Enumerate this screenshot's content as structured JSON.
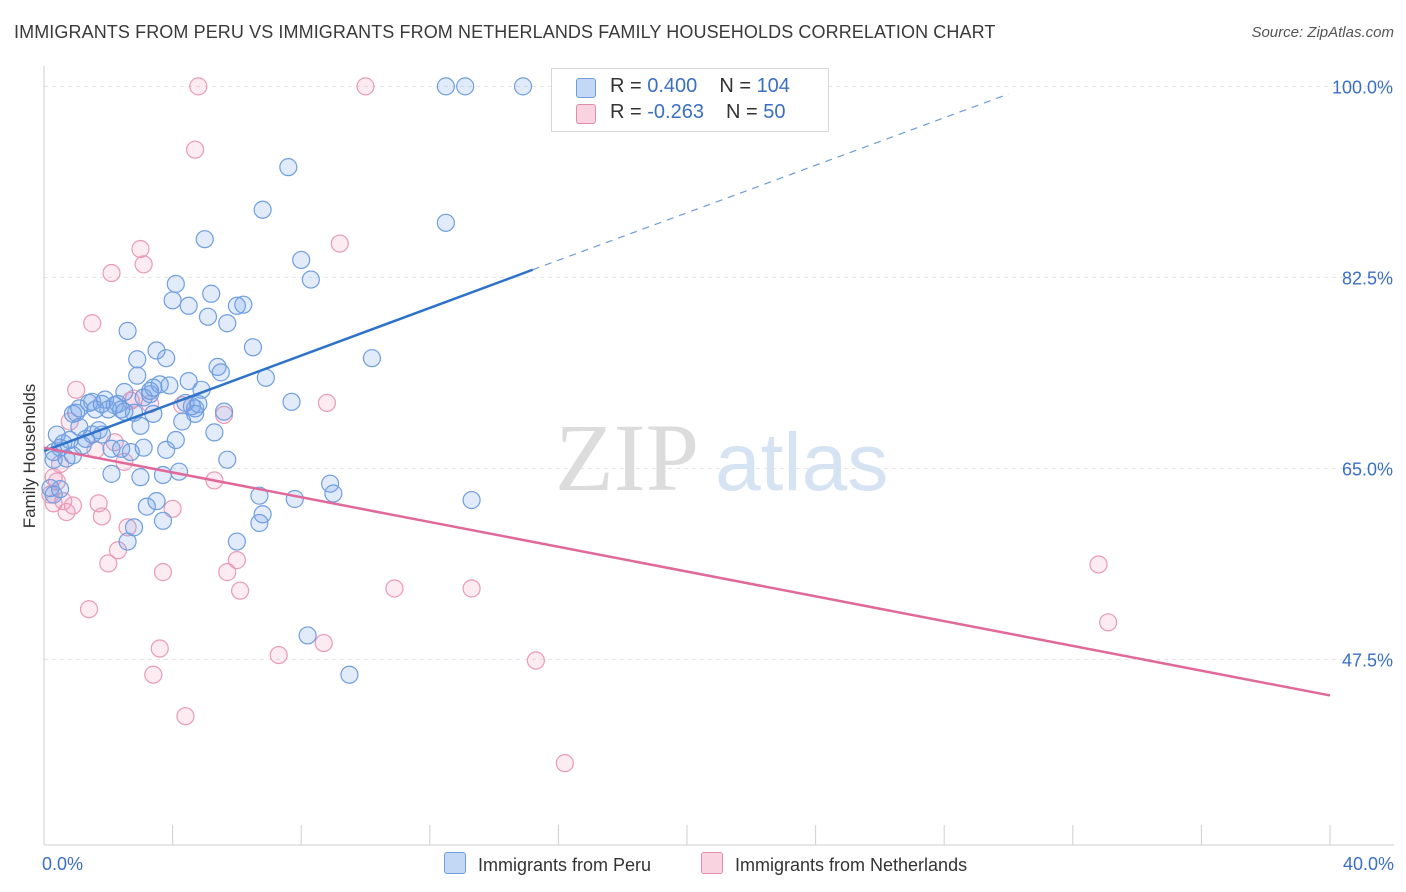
{
  "title": "IMMIGRANTS FROM PERU VS IMMIGRANTS FROM NETHERLANDS FAMILY HOUSEHOLDS CORRELATION CHART",
  "source": "Source: ZipAtlas.com",
  "watermark": {
    "zip": "ZIP",
    "atlas": "atlas"
  },
  "legend": {
    "rows": [
      {
        "r_label": "R = ",
        "r_value": "0.400",
        "n_label": "N = ",
        "n_value": "104",
        "color": "#aac8f0",
        "border": "#6f9ee0"
      },
      {
        "r_label": "R = ",
        "r_value": "-0.263",
        "n_label": "N = ",
        "n_value": "50",
        "color": "#f6c0d2",
        "border": "#e58aab"
      }
    ]
  },
  "bottom_legend": {
    "peru": "Immigrants from Peru",
    "netherlands": "Immigrants from Netherlands"
  },
  "colors": {
    "peru_fill": "rgba(120,165,230,0.22)",
    "peru_stroke": "#6f9ee0",
    "peru_line": "#2f72c9",
    "neth_fill": "rgba(240,150,185,0.18)",
    "neth_stroke": "#e99ab6",
    "neth_line": "#e0699a",
    "tick_label": "#3b6fc4",
    "grid": "#e2e2e2"
  },
  "chart_data": {
    "type": "scatter",
    "title": "IMMIGRANTS FROM PERU VS IMMIGRANTS FROM NETHERLANDS FAMILY HOUSEHOLDS CORRELATION CHART",
    "xlabel": "",
    "ylabel": "Family Households",
    "xlim": [
      0,
      40
    ],
    "ylim": [
      30.5,
      101.5
    ],
    "x_tick_labels": [
      "0.0%",
      "40.0%"
    ],
    "y_ticks": [
      47.5,
      65.0,
      82.5,
      100.0
    ],
    "y_tick_labels": [
      "47.5%",
      "65.0%",
      "82.5%",
      "100.0%"
    ],
    "grid": true,
    "legend_position": "top-center",
    "series": [
      {
        "name": "Immigrants from Peru",
        "r": 0.4,
        "n": 104,
        "trend": {
          "x": [
            0,
            15.2
          ],
          "y": [
            66.6,
            83.2
          ],
          "dashed_to": [
            30.0,
            99.3
          ]
        },
        "points": [
          [
            0.2,
            63.2
          ],
          [
            0.3,
            62.6
          ],
          [
            0.3,
            66.5
          ],
          [
            0.4,
            68.1
          ],
          [
            0.5,
            66.9
          ],
          [
            0.5,
            63.1
          ],
          [
            0.6,
            67.3
          ],
          [
            0.7,
            65.9
          ],
          [
            0.8,
            67.6
          ],
          [
            0.9,
            66.2
          ],
          [
            0.9,
            70.0
          ],
          [
            1.0,
            70.1
          ],
          [
            1.1,
            68.8
          ],
          [
            1.2,
            67.1
          ],
          [
            1.3,
            67.7
          ],
          [
            1.4,
            71.0
          ],
          [
            1.5,
            68.1
          ],
          [
            1.5,
            71.1
          ],
          [
            1.6,
            70.4
          ],
          [
            1.7,
            68.5
          ],
          [
            1.8,
            70.9
          ],
          [
            1.8,
            68.1
          ],
          [
            1.9,
            71.3
          ],
          [
            2.0,
            70.4
          ],
          [
            2.1,
            66.8
          ],
          [
            2.1,
            64.5
          ],
          [
            2.2,
            70.8
          ],
          [
            2.3,
            70.9
          ],
          [
            2.4,
            66.8
          ],
          [
            2.4,
            70.4
          ],
          [
            2.5,
            70.2
          ],
          [
            2.5,
            72.0
          ],
          [
            2.6,
            58.3
          ],
          [
            2.6,
            77.6
          ],
          [
            2.7,
            66.5
          ],
          [
            2.8,
            59.6
          ],
          [
            2.8,
            70.1
          ],
          [
            2.9,
            73.5
          ],
          [
            2.9,
            75.0
          ],
          [
            3.0,
            68.9
          ],
          [
            3.0,
            64.2
          ],
          [
            3.1,
            66.9
          ],
          [
            3.1,
            71.5
          ],
          [
            3.2,
            61.5
          ],
          [
            3.3,
            71.8
          ],
          [
            3.4,
            72.4
          ],
          [
            3.4,
            70.0
          ],
          [
            3.5,
            62.0
          ],
          [
            3.5,
            75.8
          ],
          [
            3.6,
            72.7
          ],
          [
            3.7,
            64.4
          ],
          [
            3.7,
            60.2
          ],
          [
            3.8,
            66.7
          ],
          [
            3.8,
            75.1
          ],
          [
            3.9,
            72.6
          ],
          [
            4.0,
            80.4
          ],
          [
            4.1,
            67.6
          ],
          [
            4.1,
            81.9
          ],
          [
            4.2,
            64.7
          ],
          [
            4.3,
            69.3
          ],
          [
            4.4,
            71.0
          ],
          [
            4.5,
            73.0
          ],
          [
            4.5,
            79.9
          ],
          [
            4.6,
            70.7
          ],
          [
            4.7,
            70.5
          ],
          [
            4.8,
            70.9
          ],
          [
            4.9,
            72.2
          ],
          [
            5.0,
            86.0
          ],
          [
            5.1,
            78.9
          ],
          [
            5.2,
            81.0
          ],
          [
            5.3,
            68.3
          ],
          [
            5.4,
            74.3
          ],
          [
            5.5,
            73.8
          ],
          [
            5.6,
            70.2
          ],
          [
            5.7,
            78.3
          ],
          [
            5.7,
            65.8
          ],
          [
            6.0,
            58.3
          ],
          [
            6.0,
            79.9
          ],
          [
            6.2,
            80.0
          ],
          [
            6.5,
            76.1
          ],
          [
            6.7,
            60.0
          ],
          [
            6.7,
            62.5
          ],
          [
            6.8,
            60.8
          ],
          [
            6.8,
            88.7
          ],
          [
            6.9,
            73.3
          ],
          [
            7.6,
            92.6
          ],
          [
            7.7,
            71.1
          ],
          [
            7.8,
            62.2
          ],
          [
            8.0,
            84.1
          ],
          [
            8.2,
            49.7
          ],
          [
            8.3,
            82.3
          ],
          [
            8.9,
            63.6
          ],
          [
            9.0,
            62.7
          ],
          [
            9.5,
            46.1
          ],
          [
            10.2,
            75.1
          ],
          [
            12.5,
            100.0
          ],
          [
            12.5,
            87.5
          ],
          [
            13.1,
            100.0
          ],
          [
            13.3,
            62.1
          ],
          [
            14.9,
            100.0
          ],
          [
            0.3,
            65.8
          ],
          [
            1.1,
            70.5
          ],
          [
            3.3,
            72.1
          ],
          [
            4.7,
            70.0
          ]
        ]
      },
      {
        "name": "Immigrants from Netherlands",
        "r": -0.263,
        "n": 50,
        "trend": {
          "x": [
            0,
            40
          ],
          "y": [
            66.9,
            44.2
          ]
        },
        "points": [
          [
            0.2,
            62.6
          ],
          [
            0.3,
            64.2
          ],
          [
            0.3,
            61.8
          ],
          [
            0.4,
            63.8
          ],
          [
            0.5,
            65.4
          ],
          [
            0.6,
            62.0
          ],
          [
            0.7,
            61.0
          ],
          [
            0.8,
            69.3
          ],
          [
            0.9,
            61.6
          ],
          [
            1.0,
            72.2
          ],
          [
            1.4,
            52.1
          ],
          [
            1.5,
            78.3
          ],
          [
            1.7,
            61.8
          ],
          [
            1.8,
            60.6
          ],
          [
            2.0,
            56.3
          ],
          [
            2.1,
            82.9
          ],
          [
            2.2,
            67.4
          ],
          [
            2.3,
            57.5
          ],
          [
            2.5,
            65.6
          ],
          [
            2.6,
            59.6
          ],
          [
            2.7,
            71.2
          ],
          [
            2.8,
            71.4
          ],
          [
            3.0,
            85.1
          ],
          [
            3.1,
            83.7
          ],
          [
            3.3,
            70.9
          ],
          [
            3.4,
            46.1
          ],
          [
            3.6,
            48.5
          ],
          [
            3.7,
            55.5
          ],
          [
            4.0,
            61.3
          ],
          [
            4.3,
            70.8
          ],
          [
            4.4,
            42.3
          ],
          [
            4.7,
            94.2
          ],
          [
            4.8,
            100.0
          ],
          [
            5.3,
            63.9
          ],
          [
            5.6,
            69.9
          ],
          [
            5.7,
            55.5
          ],
          [
            6.0,
            56.6
          ],
          [
            6.1,
            53.8
          ],
          [
            7.3,
            47.9
          ],
          [
            8.7,
            49.0
          ],
          [
            8.8,
            71.0
          ],
          [
            9.2,
            85.6
          ],
          [
            10.0,
            100.0
          ],
          [
            10.9,
            54.0
          ],
          [
            13.3,
            54.0
          ],
          [
            15.3,
            47.4
          ],
          [
            16.2,
            38.0
          ],
          [
            32.8,
            56.2
          ],
          [
            33.1,
            50.9
          ],
          [
            1.6,
            66.7
          ]
        ]
      }
    ]
  }
}
